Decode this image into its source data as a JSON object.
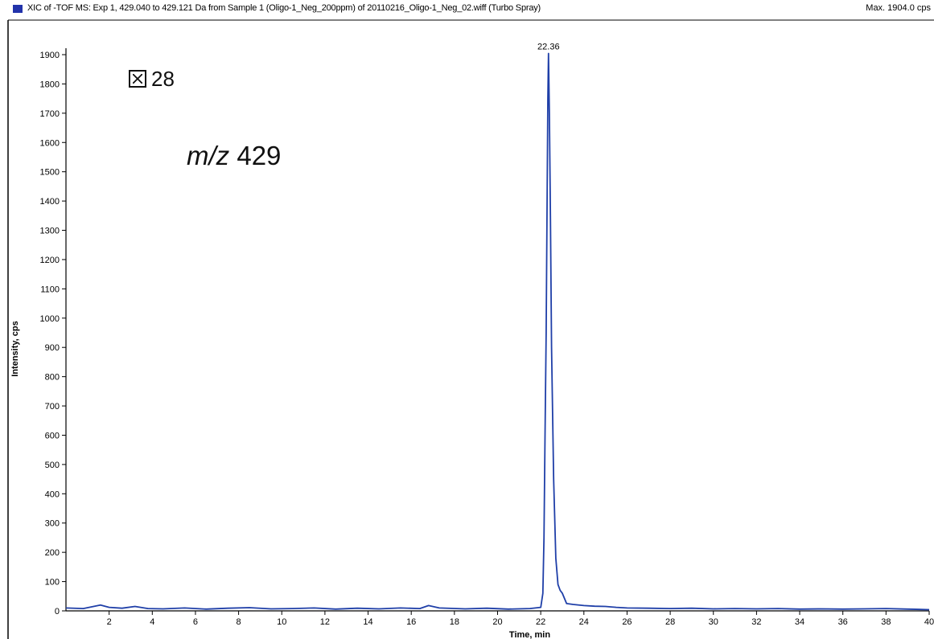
{
  "chart_data": {
    "type": "line",
    "title": "XIC of -TOF MS: Exp 1, 429.040 to 429.121 Da from Sample 1 (Oligo-1_Neg_200ppm) of 20110216_Oligo-1_Neg_02.wiff (Turbo Spray)",
    "max_label": "Max. 1904.0 cps",
    "xlabel": "Time, min",
    "ylabel": "Intensity, cps",
    "xlim": [
      0,
      40
    ],
    "ylim": [
      0,
      1900
    ],
    "x_ticks": [
      "2",
      "4",
      "6",
      "8",
      "10",
      "12",
      "14",
      "16",
      "18",
      "20",
      "22",
      "24",
      "26",
      "28",
      "30",
      "32",
      "34",
      "36",
      "38",
      "40"
    ],
    "y_ticks": [
      "0",
      "100",
      "200",
      "300",
      "400",
      "500",
      "600",
      "700",
      "800",
      "900",
      "1000",
      "1100",
      "1200",
      "1300",
      "1400",
      "1500",
      "1600",
      "1700",
      "1800",
      "1900"
    ],
    "peak_label": "22.36",
    "color": "#1f3fa8",
    "series": [
      {
        "x": [
          0,
          0.8,
          1.6,
          2.0,
          2.6,
          3.2,
          3.8,
          4.5,
          5.5,
          6.5,
          7.5,
          8.5,
          9.5,
          10.5,
          11.5,
          12.5,
          13.5,
          14.5,
          15.5,
          16.4,
          16.8,
          17.3,
          18.5,
          19.5,
          20.5,
          21.5,
          22.0,
          22.1,
          22.15,
          22.2,
          22.25,
          22.3,
          22.33,
          22.36,
          22.4,
          22.45,
          22.5,
          22.6,
          22.7,
          22.8,
          22.9,
          23.0,
          23.2,
          23.5,
          24.0,
          24.5,
          25.0,
          25.5,
          26.0,
          27.0,
          28.0,
          29.0,
          30.0,
          31.0,
          32.0,
          33.0,
          34.0,
          35.0,
          36.0,
          37.0,
          38.0,
          39.0,
          40.0
        ],
        "y": [
          10,
          8,
          20,
          12,
          9,
          15,
          8,
          7,
          10,
          6,
          9,
          11,
          7,
          8,
          10,
          6,
          9,
          7,
          10,
          8,
          18,
          10,
          7,
          9,
          6,
          8,
          12,
          60,
          250,
          600,
          950,
          1450,
          1750,
          1904,
          1700,
          1350,
          900,
          450,
          180,
          90,
          70,
          60,
          25,
          22,
          18,
          16,
          15,
          12,
          10,
          9,
          8,
          9,
          7,
          8,
          7,
          8,
          6,
          7,
          6,
          7,
          8,
          6,
          4
        ]
      }
    ]
  }
}
